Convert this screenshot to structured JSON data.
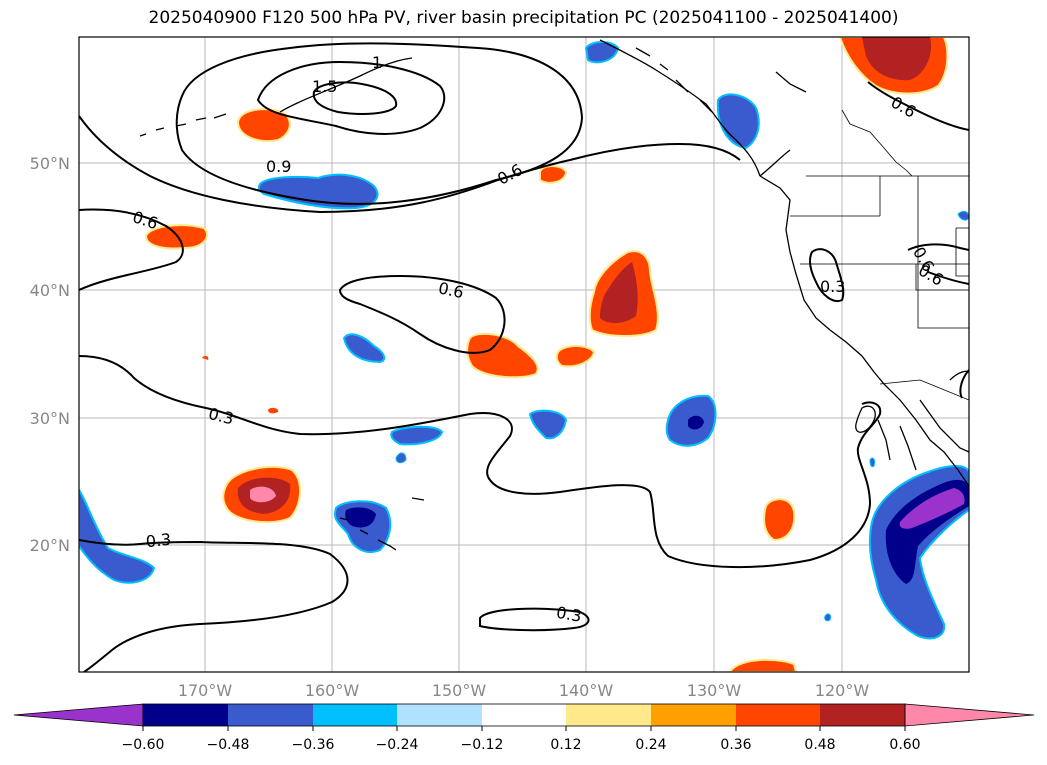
{
  "title": "2025040900 F120 500 hPa PV, river basin precipitation PC (2025041100 - 2025041400)",
  "map": {
    "lat_labels": [
      "50°N",
      "40°N",
      "30°N",
      "20°N"
    ],
    "lon_labels": [
      "170°W",
      "160°W",
      "150°W",
      "140°W",
      "130°W",
      "120°W"
    ],
    "pv_contour_labels": [
      "1",
      "1.5",
      "0.9",
      "0.6",
      "0.6",
      "0.6",
      "0.6",
      "0.3",
      "0.3",
      "0.6",
      "0.3",
      "0.3",
      "0.6"
    ]
  },
  "colorbar": {
    "ticks": [
      "−0.60",
      "−0.48",
      "−0.36",
      "−0.24",
      "−0.12",
      "0.12",
      "0.24",
      "0.36",
      "0.48",
      "0.60"
    ],
    "colors": [
      "#9933cc",
      "#00008b",
      "#3a5bcd",
      "#00bfff",
      "#b0e2ff",
      "#ffffff",
      "#ffe98a",
      "#ffa000",
      "#ff4500",
      "#b22222",
      "#ff88aa"
    ]
  }
}
